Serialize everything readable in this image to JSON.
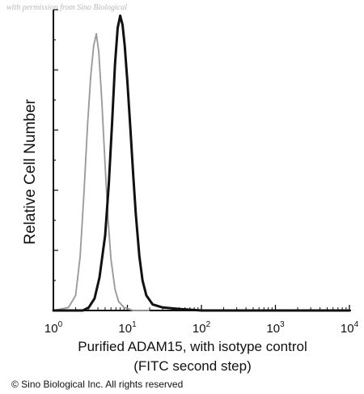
{
  "watermark": "with permission from Sino Biological",
  "copyright": "© Sino Biological Inc. All rights reserved",
  "chart_data": {
    "type": "line",
    "xlabel_line1": "Purified ADAM15, with isotype control",
    "xlabel_line2": "(FITC second step)",
    "ylabel": "Relative Cell Number",
    "x_scale": "log",
    "xlim": [
      1,
      10000
    ],
    "ylim": [
      0,
      1
    ],
    "x_ticks": [
      {
        "base": "10",
        "exp": "0",
        "value": 1
      },
      {
        "base": "10",
        "exp": "1",
        "value": 10
      },
      {
        "base": "10",
        "exp": "2",
        "value": 100
      },
      {
        "base": "10",
        "exp": "3",
        "value": 1000
      },
      {
        "base": "10",
        "exp": "4",
        "value": 10000
      }
    ],
    "grid": false,
    "series": [
      {
        "style": "dotted-gray",
        "color": "#9a9a9a",
        "x": [
          1.0,
          1.6,
          2.0,
          2.3,
          2.6,
          2.9,
          3.2,
          3.5,
          3.8,
          4.1,
          4.5,
          5.0,
          5.5,
          6.0,
          6.8,
          7.6,
          9.0,
          12.0,
          20.0
        ],
        "y": [
          0.0,
          0.01,
          0.05,
          0.18,
          0.4,
          0.62,
          0.78,
          0.88,
          0.92,
          0.86,
          0.7,
          0.48,
          0.3,
          0.17,
          0.07,
          0.03,
          0.01,
          0.0,
          0.0
        ]
      },
      {
        "style": "solid-black",
        "color": "#111111",
        "x": [
          1.0,
          2.5,
          3.0,
          3.6,
          4.2,
          5.0,
          5.6,
          6.2,
          6.8,
          7.4,
          8.0,
          8.6,
          9.2,
          10.0,
          11.0,
          12.0,
          13.0,
          14.5,
          16.0,
          18.0,
          22.0,
          30.0,
          50.0,
          100.0,
          1000.0,
          10000.0
        ],
        "y": [
          0.0,
          0.0,
          0.01,
          0.04,
          0.11,
          0.25,
          0.42,
          0.62,
          0.82,
          0.94,
          0.98,
          0.95,
          0.88,
          0.76,
          0.6,
          0.45,
          0.32,
          0.18,
          0.1,
          0.05,
          0.02,
          0.01,
          0.005,
          0.0,
          0.0,
          0.0
        ]
      }
    ]
  }
}
